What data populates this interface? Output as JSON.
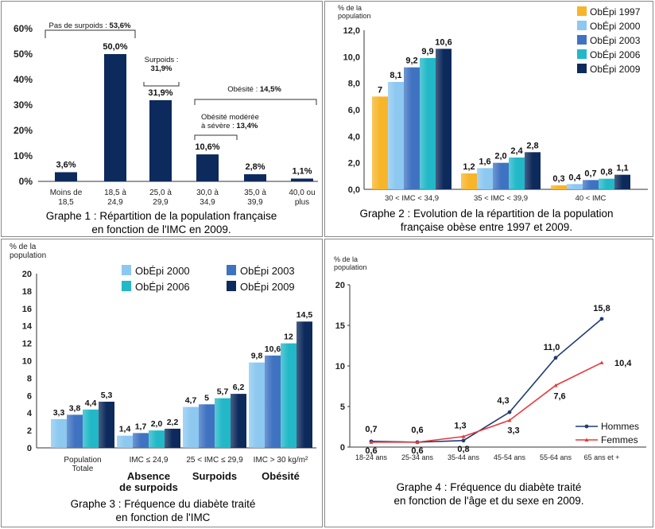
{
  "colors": {
    "navy": "#1f3c73",
    "navy_dark": "#0d2a5c",
    "orange": "#f7b52a",
    "lightblue": "#8cc8f0",
    "midblue": "#3f73c2",
    "teal": "#22b8c8",
    "red": "#e8383d",
    "border": "#888888"
  },
  "graph1": {
    "caption_line1": "Graphe 1 : Répartition de la population française",
    "caption_line2": "en fonction de l'IMC en 2009.",
    "chart_data": {
      "type": "bar",
      "categories": [
        [
          "Moins de",
          "18,5"
        ],
        [
          "18,5 à",
          "24,9"
        ],
        [
          "25,0 à",
          "29,9"
        ],
        [
          "30,0 à",
          "34,9"
        ],
        [
          "35,0 à",
          "39,9"
        ],
        [
          "40,0 ou",
          "plus"
        ]
      ],
      "values": [
        3.6,
        50.0,
        31.9,
        10.6,
        2.8,
        1.1
      ],
      "value_labels": [
        "3,6%",
        "50,0%",
        "31,9%",
        "10,6%",
        "2,8%",
        "1,1%"
      ],
      "yticks": [
        "0%",
        "10%",
        "20%",
        "30%",
        "40%",
        "50%",
        "60%"
      ],
      "ylim": [
        0,
        60
      ],
      "annotations": {
        "pas_surpoids_text": "Pas de surpoids : ",
        "pas_surpoids_value": "53,6%",
        "surpoids_line1": "Surpoids :",
        "surpoids_line2": "31,9%",
        "obesite_text": "Obésité : ",
        "obesite_value": "14,5%",
        "obesite_mod_line1": "Obésité modérée",
        "obesite_mod_line2": "à sévère : ",
        "obesite_mod_value": "13,4%"
      }
    }
  },
  "graph2": {
    "caption_line1": "Graphe 2 : Evolution de la répartition de la population",
    "caption_line2": "française obèse entre 1997 et 2009.",
    "ylabel_line1": "% de la",
    "ylabel_line2": "population",
    "chart_data": {
      "type": "bar",
      "categories": [
        "30 < IMC < 34,9",
        "35 < IMC < 39,9",
        "40 < IMC"
      ],
      "series": [
        {
          "name": "ObÉpi 1997",
          "values": [
            7.0,
            1.2,
            0.3
          ],
          "labels": [
            "7",
            "1,2",
            "0,3"
          ],
          "color": "#f7b52a"
        },
        {
          "name": "ObÉpi 2000",
          "values": [
            8.1,
            1.6,
            0.4
          ],
          "labels": [
            "8,1",
            "1,6",
            "0,4"
          ],
          "color": "#8cc8f0"
        },
        {
          "name": "ObÉpi 2003",
          "values": [
            9.2,
            2.0,
            0.7
          ],
          "labels": [
            "9,2",
            "2,0",
            "0,7"
          ],
          "color": "#3f73c2"
        },
        {
          "name": "ObÉpi 2006",
          "values": [
            9.9,
            2.4,
            0.8
          ],
          "labels": [
            "9,9",
            "2,4",
            "0,8"
          ],
          "color": "#22b8c8"
        },
        {
          "name": "ObÉpi 2009",
          "values": [
            10.6,
            2.8,
            1.1
          ],
          "labels": [
            "10,6",
            "2,8",
            "1,1"
          ],
          "color": "#0d2a5c"
        }
      ],
      "yticks": [
        "0,0",
        "2,0",
        "4,0",
        "6,0",
        "8,0",
        "10,0",
        "12,0"
      ],
      "ylim": [
        0,
        12
      ]
    }
  },
  "graph3": {
    "caption_line1": "Graphe 3 : Fréquence du diabète traité",
    "caption_line2": "en fonction de l'IMC",
    "ylabel_line1": "% de la",
    "ylabel_line2": "population",
    "chart_data": {
      "type": "bar",
      "categories": [
        {
          "line1": "Population",
          "line2": "Totale",
          "group": ""
        },
        {
          "line1": "IMC ≤ 24,9",
          "line2": "",
          "group": "Absence de surpoids"
        },
        {
          "line1": "25 < IMC ≤ 29,9",
          "line2": "",
          "group": "Surpoids"
        },
        {
          "line1": "IMC > 30 kg/m²",
          "line2": "",
          "group": "Obésité"
        }
      ],
      "group_line1": [
        "",
        "Absence",
        "Surpoids",
        "Obésité"
      ],
      "group_line2": [
        "",
        "de surpoids",
        "",
        ""
      ],
      "series": [
        {
          "name": "ObÉpi 2000",
          "values": [
            3.3,
            1.4,
            4.7,
            9.8
          ],
          "labels": [
            "3,3",
            "1,4",
            "4,7",
            "9,8"
          ],
          "color": "#8cc8f0"
        },
        {
          "name": "ObÉpi 2003",
          "values": [
            3.8,
            1.7,
            5.0,
            10.6
          ],
          "labels": [
            "3,8",
            "1,7",
            "5",
            "10,6"
          ],
          "color": "#3f73c2"
        },
        {
          "name": "ObÉpi 2006",
          "values": [
            4.4,
            2.0,
            5.7,
            12.0
          ],
          "labels": [
            "4,4",
            "2,0",
            "5,7",
            "12"
          ],
          "color": "#22b8c8"
        },
        {
          "name": "ObÉpi 2009",
          "values": [
            5.3,
            2.2,
            6.2,
            14.5
          ],
          "labels": [
            "5,3",
            "2,2",
            "6,2",
            "14,5"
          ],
          "color": "#0d2a5c"
        }
      ],
      "yticks": [
        "0",
        "2",
        "4",
        "6",
        "8",
        "10",
        "12",
        "14",
        "16",
        "18",
        "20"
      ],
      "ylim": [
        0,
        20
      ]
    }
  },
  "graph4": {
    "caption_line1": "Graphe 4 : Fréquence du diabète traité",
    "caption_line2": "en fonction de l'âge et du sexe en 2009.",
    "ylabel_line1": "% de la",
    "ylabel_line2": "population",
    "chart_data": {
      "type": "line",
      "x": [
        "18-24 ans",
        "25-34 ans",
        "35-44 ans",
        "45-54 ans",
        "55-64 ans",
        "65 ans et +"
      ],
      "series": [
        {
          "name": "Hommes",
          "values": [
            0.7,
            0.6,
            0.8,
            4.3,
            11.0,
            15.8
          ],
          "labels": [
            "0,7",
            "0,6",
            "0,8",
            "4,3",
            "11,0",
            "15,8"
          ],
          "color": "#1f3c73"
        },
        {
          "name": "Femmes",
          "values": [
            0.6,
            0.6,
            1.3,
            3.3,
            7.6,
            10.4
          ],
          "labels": [
            "0,6",
            "0,6",
            "1,3",
            "3,3",
            "7,6",
            "10,4"
          ],
          "color": "#e8383d"
        }
      ],
      "yticks": [
        "0",
        "5",
        "10",
        "15",
        "20"
      ],
      "ylim": [
        0,
        20
      ]
    }
  }
}
